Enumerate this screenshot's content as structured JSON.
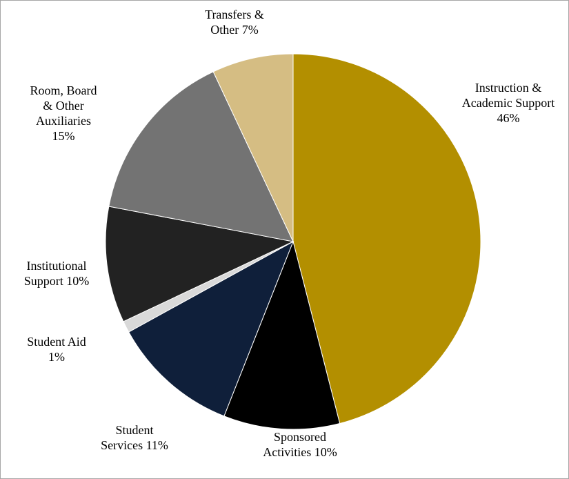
{
  "chart_data": {
    "type": "pie",
    "categories": [
      "Instruction & Academic Support",
      "Sponsored Activities",
      "Student Services",
      "Student Aid",
      "Institutional Support",
      "Room, Board & Other Auxiliaries",
      "Transfers & Other"
    ],
    "values": [
      46,
      10,
      11,
      1,
      10,
      15,
      7
    ],
    "value_labels": [
      "46%",
      "10%",
      "11%",
      "1%",
      "10%",
      "15%",
      "7%"
    ],
    "colors": [
      "#b38f00",
      "#000000",
      "#0f1f3a",
      "#d9d9d9",
      "#222222",
      "#737373",
      "#d5bd83"
    ]
  }
}
